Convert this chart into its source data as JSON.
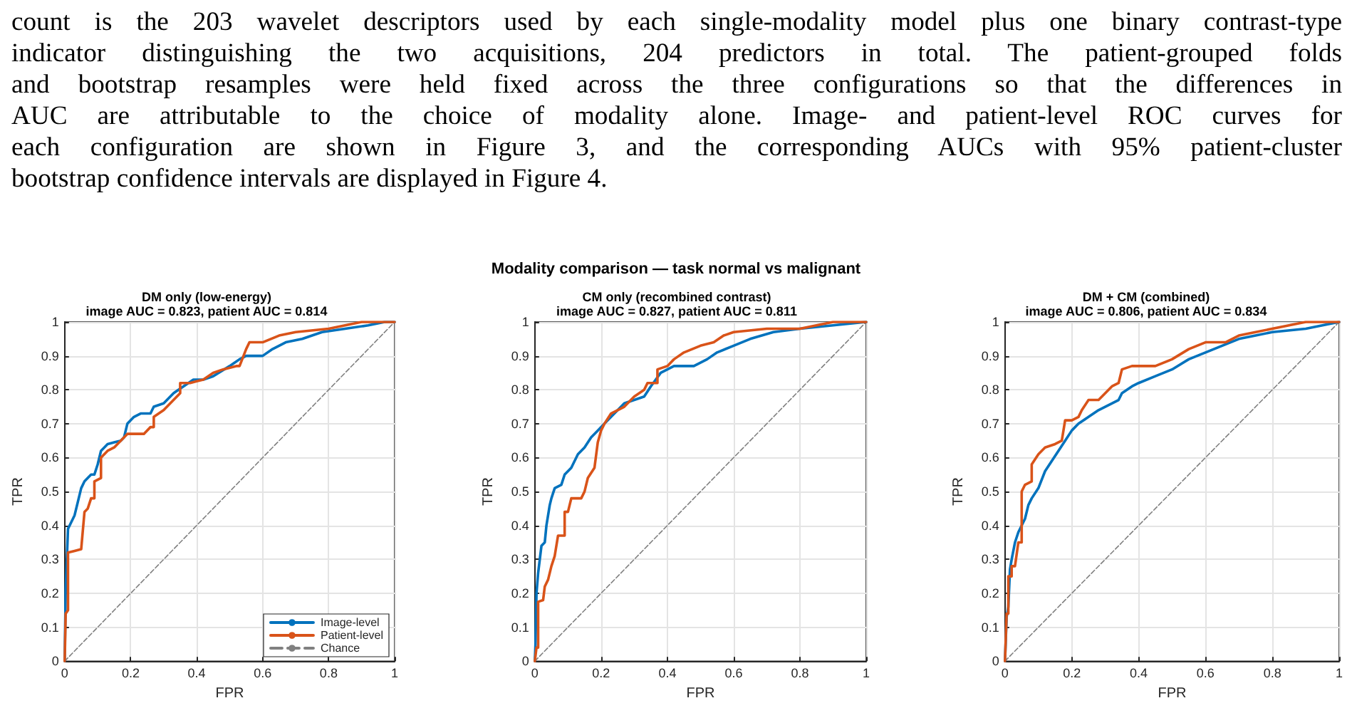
{
  "chart_data": [
    {
      "type": "other",
      "title": "Modality comparison — task normal vs malignant",
      "annotations": [
        "count is the 203 wavelet descriptors used by each single-modality model plus one binary contrast-type",
        "indicator distinguishing the two acquisitions, 204 predictors in total.  The patient-grouped folds",
        "and bootstrap resamples were held fixed across the three configurations so that the differences in",
        "AUC are attributable to the choice of modality alone.  Image- and patient-level ROC curves for",
        "each configuration are shown in Figure 3, and the corresponding AUCs with 95% patient-cluster",
        "bootstrap confidence intervals are displayed in Figure 4."
      ]
    },
    {
      "type": "line",
      "title": "DM only (low-energy)",
      "subtitle": "image AUC = 0.823, patient AUC = 0.814",
      "xlabel": "FPR",
      "ylabel": "TPR",
      "xlim": [
        0,
        1
      ],
      "ylim": [
        0,
        1
      ],
      "xticks": [
        0,
        0.2,
        0.4,
        0.6,
        0.8,
        1
      ],
      "yticks": [
        0,
        0.1,
        0.2,
        0.3,
        0.4,
        0.5,
        0.6,
        0.7,
        0.8,
        0.9,
        1
      ],
      "grid": true,
      "legend": "bottom right",
      "marker": "none",
      "series": [
        {
          "name": "Image-level",
          "color": "#0072bd",
          "line_style": "solid",
          "x": [
            0,
            0.003,
            0.01,
            0.02,
            0.03,
            0.04,
            0.05,
            0.06,
            0.07,
            0.08,
            0.09,
            0.1,
            0.11,
            0.13,
            0.15,
            0.17,
            0.18,
            0.19,
            0.21,
            0.23,
            0.26,
            0.27,
            0.3,
            0.33,
            0.36,
            0.39,
            0.42,
            0.45,
            0.5,
            0.53,
            0.55,
            0.6,
            0.63,
            0.67,
            0.72,
            0.78,
            0.85,
            0.92,
            0.97,
            1
          ],
          "values": [
            0,
            0.21,
            0.39,
            0.41,
            0.43,
            0.47,
            0.51,
            0.53,
            0.54,
            0.55,
            0.55,
            0.58,
            0.62,
            0.64,
            0.645,
            0.65,
            0.66,
            0.7,
            0.72,
            0.73,
            0.73,
            0.75,
            0.76,
            0.79,
            0.81,
            0.83,
            0.83,
            0.84,
            0.87,
            0.89,
            0.9,
            0.9,
            0.92,
            0.94,
            0.95,
            0.97,
            0.98,
            0.99,
            1,
            1
          ]
        },
        {
          "name": "Patient-level",
          "color": "#d95319",
          "line_style": "solid",
          "x": [
            0,
            0.003,
            0.01,
            0.01,
            0.03,
            0.05,
            0.06,
            0.07,
            0.08,
            0.09,
            0.09,
            0.11,
            0.11,
            0.13,
            0.15,
            0.17,
            0.19,
            0.24,
            0.26,
            0.27,
            0.27,
            0.3,
            0.32,
            0.35,
            0.35,
            0.38,
            0.4,
            0.42,
            0.45,
            0.48,
            0.52,
            0.53,
            0.55,
            0.56,
            0.6,
            0.65,
            0.7,
            0.8,
            0.9,
            1
          ],
          "values": [
            0,
            0.14,
            0.15,
            0.32,
            0.325,
            0.33,
            0.44,
            0.45,
            0.48,
            0.48,
            0.53,
            0.54,
            0.6,
            0.62,
            0.63,
            0.65,
            0.67,
            0.67,
            0.69,
            0.69,
            0.72,
            0.74,
            0.76,
            0.79,
            0.82,
            0.82,
            0.825,
            0.83,
            0.85,
            0.86,
            0.87,
            0.87,
            0.92,
            0.94,
            0.94,
            0.96,
            0.97,
            0.98,
            1,
            1
          ]
        },
        {
          "name": "Chance",
          "color": "#808080",
          "line_style": "dashed",
          "x": [
            0,
            1
          ],
          "values": [
            0,
            1
          ]
        }
      ]
    },
    {
      "type": "line",
      "title": "CM only (recombined contrast)",
      "subtitle": "image AUC = 0.827, patient AUC = 0.811",
      "xlabel": "FPR",
      "ylabel": "TPR",
      "xlim": [
        0,
        1
      ],
      "ylim": [
        0,
        1
      ],
      "xticks": [
        0,
        0.2,
        0.4,
        0.6,
        0.8,
        1
      ],
      "yticks": [
        0,
        0.1,
        0.2,
        0.3,
        0.4,
        0.5,
        0.6,
        0.7,
        0.8,
        0.9,
        1
      ],
      "grid": true,
      "marker": "none",
      "series": [
        {
          "color": "#0072bd",
          "line_style": "solid",
          "x": [
            0,
            0.002,
            0.005,
            0.01,
            0.015,
            0.02,
            0.03,
            0.035,
            0.045,
            0.05,
            0.06,
            0.08,
            0.09,
            0.11,
            0.13,
            0.15,
            0.17,
            0.19,
            0.21,
            0.24,
            0.27,
            0.3,
            0.33,
            0.35,
            0.38,
            0.42,
            0.48,
            0.52,
            0.55,
            0.6,
            0.65,
            0.72,
            0.8,
            0.9,
            1
          ],
          "values": [
            0,
            0.05,
            0.2,
            0.26,
            0.3,
            0.34,
            0.35,
            0.4,
            0.46,
            0.48,
            0.51,
            0.52,
            0.55,
            0.57,
            0.61,
            0.63,
            0.66,
            0.68,
            0.7,
            0.73,
            0.76,
            0.77,
            0.78,
            0.81,
            0.85,
            0.87,
            0.87,
            0.89,
            0.91,
            0.93,
            0.95,
            0.97,
            0.98,
            0.99,
            1
          ]
        },
        {
          "color": "#d95319",
          "line_style": "solid",
          "x": [
            0,
            0.005,
            0.01,
            0.01,
            0.025,
            0.03,
            0.04,
            0.05,
            0.06,
            0.07,
            0.09,
            0.09,
            0.1,
            0.11,
            0.14,
            0.15,
            0.16,
            0.18,
            0.19,
            0.2,
            0.21,
            0.23,
            0.25,
            0.27,
            0.3,
            0.33,
            0.34,
            0.37,
            0.37,
            0.4,
            0.42,
            0.45,
            0.5,
            0.54,
            0.57,
            0.6,
            0.7,
            0.8,
            0.9,
            1
          ],
          "values": [
            0,
            0.04,
            0.04,
            0.175,
            0.18,
            0.22,
            0.24,
            0.28,
            0.31,
            0.37,
            0.37,
            0.44,
            0.44,
            0.48,
            0.48,
            0.5,
            0.54,
            0.57,
            0.645,
            0.68,
            0.7,
            0.73,
            0.74,
            0.75,
            0.78,
            0.8,
            0.82,
            0.82,
            0.86,
            0.87,
            0.89,
            0.91,
            0.93,
            0.94,
            0.96,
            0.97,
            0.98,
            0.98,
            1,
            1
          ]
        },
        {
          "color": "#808080",
          "line_style": "dashed",
          "x": [
            0,
            1
          ],
          "values": [
            0,
            1
          ]
        }
      ]
    },
    {
      "type": "line",
      "title": "DM + CM (combined)",
      "subtitle": "image AUC = 0.806, patient AUC = 0.834",
      "xlabel": "FPR",
      "ylabel": "TPR",
      "xlim": [
        0,
        1
      ],
      "ylim": [
        0,
        1
      ],
      "xticks": [
        0,
        0.2,
        0.4,
        0.6,
        0.8,
        1
      ],
      "yticks": [
        0,
        0.1,
        0.2,
        0.3,
        0.4,
        0.5,
        0.6,
        0.7,
        0.8,
        0.9,
        1
      ],
      "grid": true,
      "marker": "none",
      "series": [
        {
          "color": "#0072bd",
          "line_style": "solid",
          "x": [
            0,
            0.005,
            0.01,
            0.015,
            0.02,
            0.03,
            0.04,
            0.05,
            0.06,
            0.07,
            0.08,
            0.1,
            0.12,
            0.14,
            0.16,
            0.18,
            0.2,
            0.22,
            0.25,
            0.28,
            0.32,
            0.34,
            0.35,
            0.38,
            0.4,
            0.45,
            0.5,
            0.55,
            0.6,
            0.65,
            0.7,
            0.75,
            0.8,
            0.9,
            1
          ],
          "values": [
            0,
            0.13,
            0.16,
            0.27,
            0.3,
            0.35,
            0.38,
            0.4,
            0.42,
            0.46,
            0.48,
            0.51,
            0.56,
            0.59,
            0.62,
            0.65,
            0.68,
            0.7,
            0.72,
            0.74,
            0.76,
            0.77,
            0.79,
            0.81,
            0.82,
            0.84,
            0.86,
            0.89,
            0.91,
            0.93,
            0.95,
            0.96,
            0.97,
            0.98,
            1
          ]
        },
        {
          "color": "#d95319",
          "line_style": "solid",
          "x": [
            0,
            0.005,
            0.01,
            0.01,
            0.02,
            0.02,
            0.03,
            0.04,
            0.05,
            0.05,
            0.06,
            0.08,
            0.08,
            0.1,
            0.11,
            0.12,
            0.15,
            0.17,
            0.18,
            0.2,
            0.22,
            0.23,
            0.25,
            0.28,
            0.3,
            0.32,
            0.34,
            0.35,
            0.38,
            0.45,
            0.5,
            0.55,
            0.6,
            0.66,
            0.7,
            0.75,
            0.85,
            0.9,
            1
          ],
          "values": [
            0,
            0.14,
            0.14,
            0.25,
            0.25,
            0.28,
            0.28,
            0.35,
            0.35,
            0.5,
            0.52,
            0.53,
            0.58,
            0.61,
            0.62,
            0.63,
            0.64,
            0.65,
            0.71,
            0.71,
            0.72,
            0.74,
            0.77,
            0.77,
            0.79,
            0.81,
            0.82,
            0.86,
            0.87,
            0.87,
            0.89,
            0.92,
            0.94,
            0.94,
            0.96,
            0.97,
            0.99,
            1,
            1
          ]
        },
        {
          "color": "#808080",
          "line_style": "dashed",
          "x": [
            0,
            1
          ],
          "values": [
            0,
            1
          ]
        }
      ]
    }
  ]
}
